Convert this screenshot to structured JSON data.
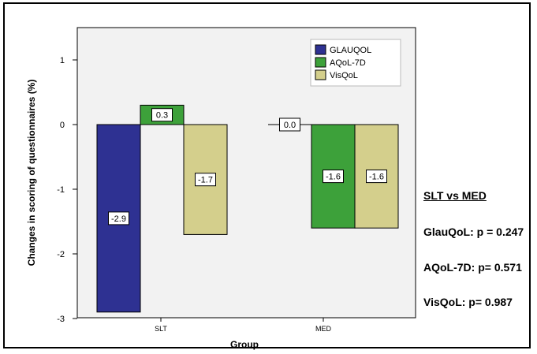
{
  "chart_data": {
    "type": "bar",
    "xlabel": "Group",
    "ylabel": "Changes in scoring of questionnaires (%)",
    "categories": [
      "SLT",
      "MED"
    ],
    "series": [
      {
        "name": "GLAUQOL",
        "values": [
          -2.9,
          0.0
        ],
        "labels": [
          "-2.9",
          "0.0"
        ],
        "color": "#2e3192"
      },
      {
        "name": "AQoL-7D",
        "values": [
          0.3,
          -1.6
        ],
        "labels": [
          "0.3",
          "-1.6"
        ],
        "color": "#3da13a"
      },
      {
        "name": "VisQoL",
        "values": [
          -1.7,
          -1.6
        ],
        "labels": [
          "-1.7",
          "-1.6"
        ],
        "color": "#d4cf8c"
      }
    ],
    "ylim": [
      -3,
      1.5
    ],
    "yticks": [
      1,
      0,
      -1,
      -2,
      -3
    ],
    "yticklabels": [
      "1",
      "0",
      "-1",
      "-2",
      "-3"
    ],
    "legend": "top-right",
    "grid": false,
    "plot_background": "#f2f2f2"
  },
  "stats": {
    "title": "SLT vs MED",
    "lines": [
      "GlauQoL: p = 0.247",
      "AQoL-7D: p= 0.571",
      "VisQoL: p= 0.987"
    ]
  }
}
